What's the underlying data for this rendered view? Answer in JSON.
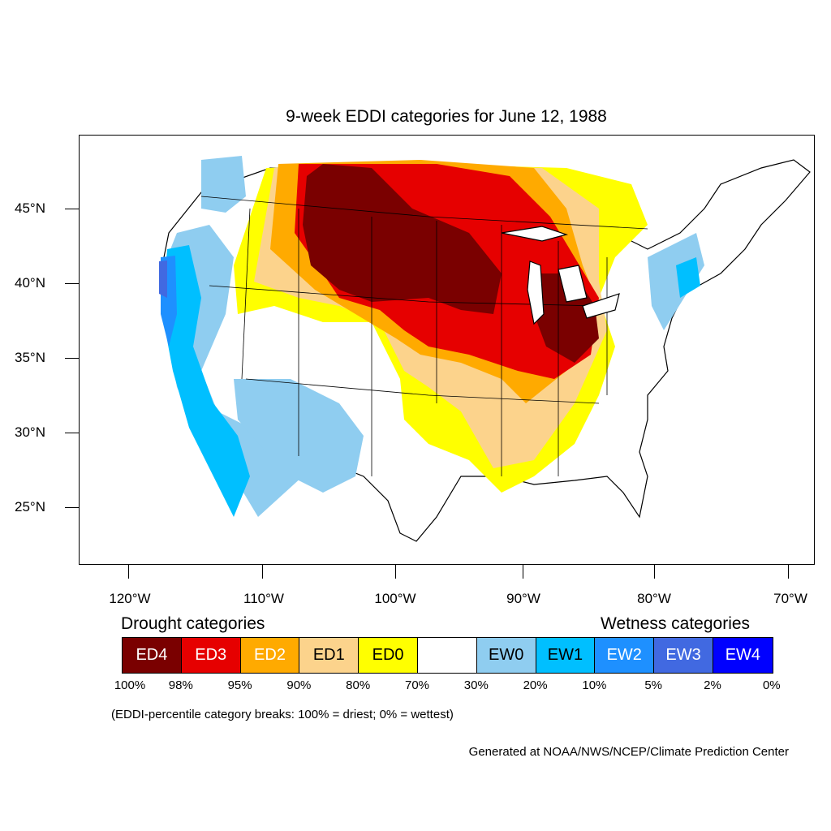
{
  "title": "9-week EDDI categories for June 12, 1988",
  "map": {
    "type": "choropleth",
    "region": "Contiguous United States",
    "lat_ticks": [
      "45°N",
      "40°N",
      "35°N",
      "30°N",
      "25°N"
    ],
    "lon_ticks": [
      "120°W",
      "110°W",
      "100°W",
      "90°W",
      "80°W",
      "70°W"
    ],
    "colors": {
      "ED4": "#7a0000",
      "ED3": "#e60000",
      "ED2": "#ffaa00",
      "ED1": "#fcd38c",
      "ED0": "#ffff00",
      "neutral": "#ffffff",
      "EW0": "#8fcdf0",
      "EW1": "#00bfff",
      "EW2": "#1e90ff",
      "EW3": "#4169e1",
      "EW4": "#0000ff"
    }
  },
  "legend": {
    "drought_heading": "Drought categories",
    "wetness_heading": "Wetness categories",
    "categories": [
      {
        "label": "ED4",
        "color": "#7a0000",
        "text_color": "#ffffff"
      },
      {
        "label": "ED3",
        "color": "#e60000",
        "text_color": "#ffffff"
      },
      {
        "label": "ED2",
        "color": "#ffaa00",
        "text_color": "#ffffff"
      },
      {
        "label": "ED1",
        "color": "#fcd38c",
        "text_color": "#000000"
      },
      {
        "label": "ED0",
        "color": "#ffff00",
        "text_color": "#000000"
      },
      {
        "label": "",
        "color": "#ffffff",
        "text_color": "#000000"
      },
      {
        "label": "EW0",
        "color": "#8fcdf0",
        "text_color": "#000000"
      },
      {
        "label": "EW1",
        "color": "#00bfff",
        "text_color": "#000000"
      },
      {
        "label": "EW2",
        "color": "#1e90ff",
        "text_color": "#ffffff"
      },
      {
        "label": "EW3",
        "color": "#4169e1",
        "text_color": "#ffffff"
      },
      {
        "label": "EW4",
        "color": "#0000ff",
        "text_color": "#ffffff"
      }
    ],
    "breaks": [
      "100%",
      "98%",
      "95%",
      "90%",
      "80%",
      "70%",
      "30%",
      "20%",
      "10%",
      "5%",
      "2%",
      "0%"
    ],
    "note": "(EDDI-percentile category breaks: 100% = driest; 0% = wettest)"
  },
  "credit": "Generated at NOAA/NWS/NCEP/Climate Prediction Center"
}
